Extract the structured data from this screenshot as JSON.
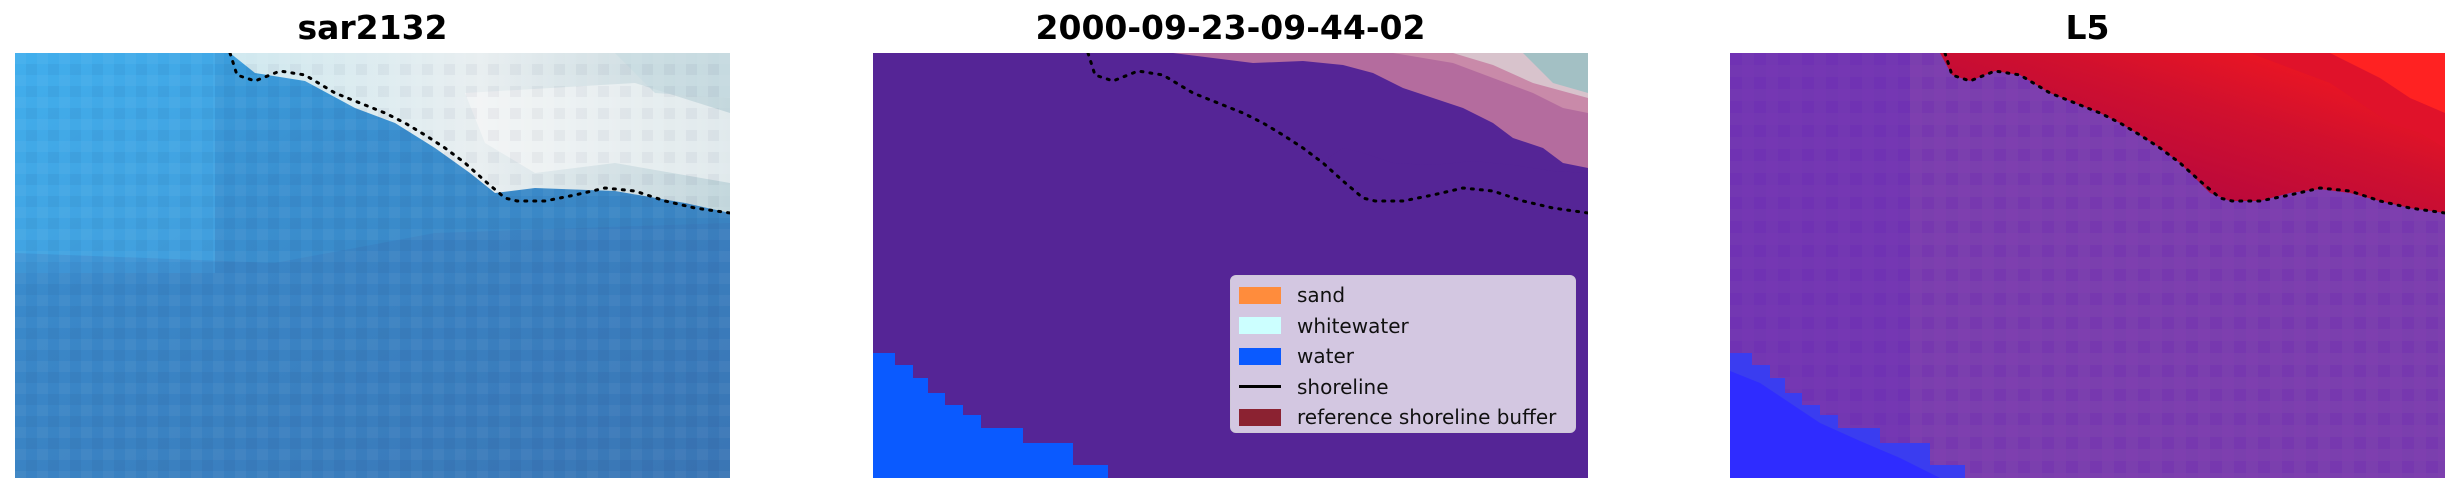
{
  "panels": [
    {
      "id": "panel-1",
      "title": "sar2132",
      "content": "RGB satellite image of coastal area with dotted reference shoreline"
    },
    {
      "id": "panel-2",
      "title": "2000-09-23-09-44-02",
      "content": "classified image with legend"
    },
    {
      "id": "panel-3",
      "title": "L5",
      "content": "probability map red/blue with dotted shoreline"
    }
  ],
  "legend": {
    "items": [
      {
        "label": "sand",
        "color": "#ff8c3c",
        "kind": "patch"
      },
      {
        "label": "whitewater",
        "color": "#ccffff",
        "kind": "patch"
      },
      {
        "label": "water",
        "color": "#0a5aff",
        "kind": "patch"
      },
      {
        "label": "shoreline",
        "color": "#000000",
        "kind": "line"
      },
      {
        "label": "reference shoreline buffer",
        "color": "#8b2231",
        "kind": "patch"
      }
    ]
  },
  "colors": {
    "classified_background": "#552596",
    "water_class": "#0a5aff",
    "whitewater_tint": "#e9e7ef",
    "sand_tint": "#b46c9e"
  }
}
